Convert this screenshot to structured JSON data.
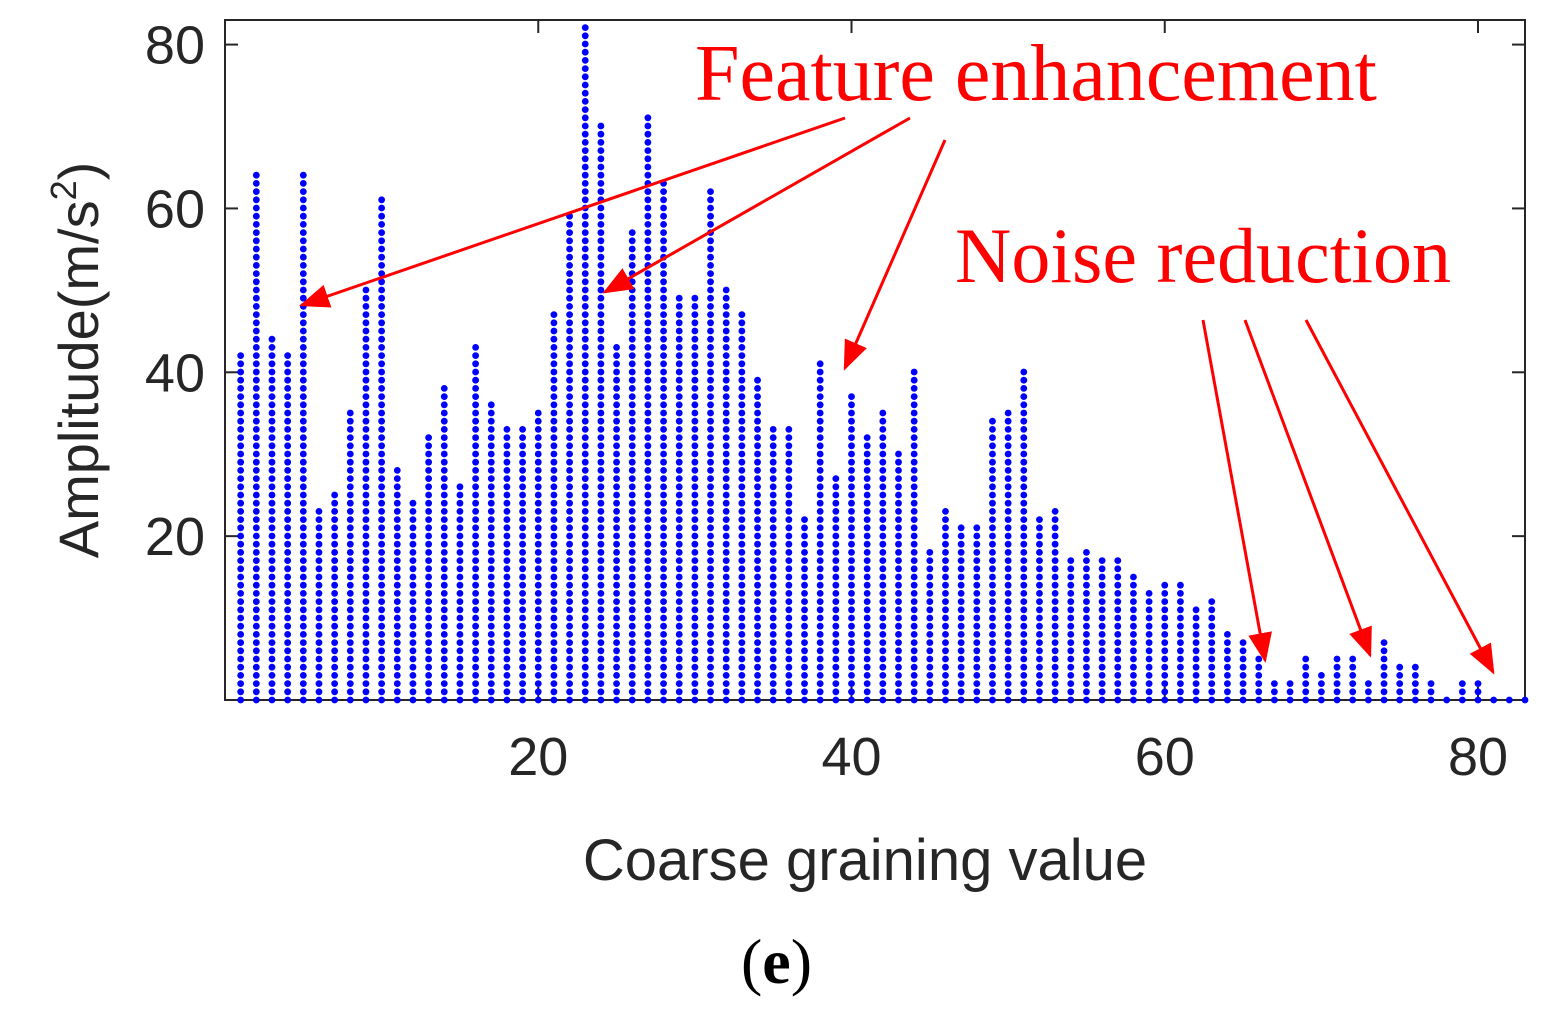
{
  "chart_data": {
    "type": "stem",
    "xlabel": "Coarse graining value",
    "ylabel_main": "Amplitude(m/s",
    "ylabel_sup": "2",
    "ylabel_close": ")",
    "xlim": [
      0,
      83
    ],
    "ylim": [
      0,
      83
    ],
    "xticks": [
      20,
      40,
      60,
      80
    ],
    "yticks": [
      20,
      40,
      60,
      80
    ],
    "marker_color": "#0000ff",
    "x": [
      1,
      2,
      3,
      4,
      5,
      6,
      7,
      8,
      9,
      10,
      11,
      12,
      13,
      14,
      15,
      16,
      17,
      18,
      19,
      20,
      21,
      22,
      23,
      24,
      25,
      26,
      27,
      28,
      29,
      30,
      31,
      32,
      33,
      34,
      35,
      36,
      37,
      38,
      39,
      40,
      41,
      42,
      43,
      44,
      45,
      46,
      47,
      48,
      49,
      50,
      51,
      52,
      53,
      54,
      55,
      56,
      57,
      58,
      59,
      60,
      61,
      62,
      63,
      64,
      65,
      66,
      67,
      68,
      69,
      70,
      71,
      72,
      73,
      74,
      75,
      76,
      77,
      78,
      79,
      80,
      81,
      82,
      83
    ],
    "values": [
      42,
      64,
      44,
      42,
      64,
      23,
      25,
      35,
      50,
      61,
      28,
      24,
      32,
      38,
      26,
      43,
      36,
      33,
      33,
      35,
      47,
      59,
      83,
      71,
      43,
      57,
      72,
      63,
      49,
      49,
      62,
      50,
      47,
      39,
      33,
      33,
      22,
      41,
      27,
      37,
      32,
      35,
      30,
      40,
      18,
      23,
      21,
      21,
      34,
      35,
      40,
      22,
      23,
      17,
      18,
      17,
      17,
      15,
      13,
      14,
      14,
      11,
      12,
      8,
      7,
      5,
      2,
      2,
      5,
      3,
      5,
      5,
      2,
      7,
      4,
      4,
      2,
      0,
      2,
      2,
      0,
      0,
      0
    ]
  },
  "annotations": {
    "feature_label": "Feature enhancement",
    "noise_label": "Noise reduction",
    "color": "#ff0000"
  },
  "panel": {
    "open": "(",
    "letter": "e",
    "close": ")"
  }
}
